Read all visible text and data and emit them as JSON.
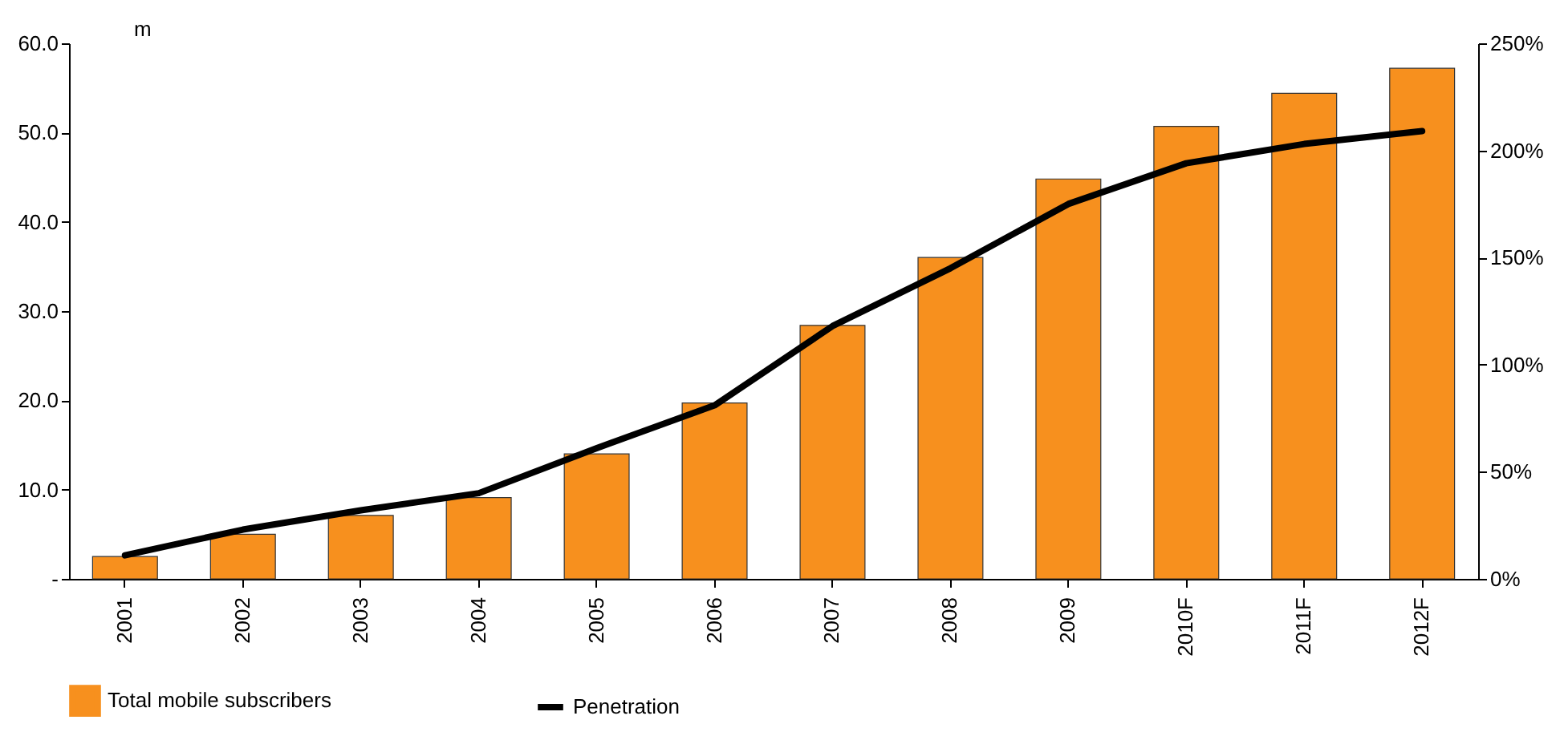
{
  "chart_data": {
    "type": "bar",
    "ylabel": "m",
    "categories": [
      "2001",
      "2002",
      "2003",
      "2004",
      "2005",
      "2006",
      "2007",
      "2008",
      "2009",
      "2010F",
      "2011F",
      "2012F"
    ],
    "series": [
      {
        "name": "Total mobile subscribers",
        "color": "#f7901e",
        "values": [
          2.5,
          5.0,
          7.1,
          9.1,
          14.0,
          19.7,
          28.4,
          36.0,
          44.8,
          50.7,
          54.4,
          57.2
        ]
      },
      {
        "name": "Penetration",
        "type": "line",
        "axis": "y2",
        "color": "#000000",
        "values": [
          11,
          23,
          32,
          40,
          61,
          81,
          118,
          145,
          175,
          194,
          203,
          209
        ]
      }
    ],
    "ylim": [
      0,
      60
    ],
    "yticks": [
      {
        "value": 0,
        "label": "-"
      },
      {
        "value": 10,
        "label": "10.0"
      },
      {
        "value": 20,
        "label": "20.0"
      },
      {
        "value": 30,
        "label": "30.0"
      },
      {
        "value": 40,
        "label": "40.0"
      },
      {
        "value": 50,
        "label": "50.0"
      },
      {
        "value": 60,
        "label": "60.0"
      }
    ],
    "y2lim": [
      0,
      250
    ],
    "y2ticks": [
      {
        "value": 0,
        "label": "0%"
      },
      {
        "value": 50,
        "label": "50%"
      },
      {
        "value": 100,
        "label": "100%"
      },
      {
        "value": 150,
        "label": "150%"
      },
      {
        "value": 200,
        "label": "200%"
      },
      {
        "value": 250,
        "label": "250%"
      }
    ],
    "grid": false,
    "legend": "bottom",
    "marker": "none",
    "line_style": "solid"
  }
}
